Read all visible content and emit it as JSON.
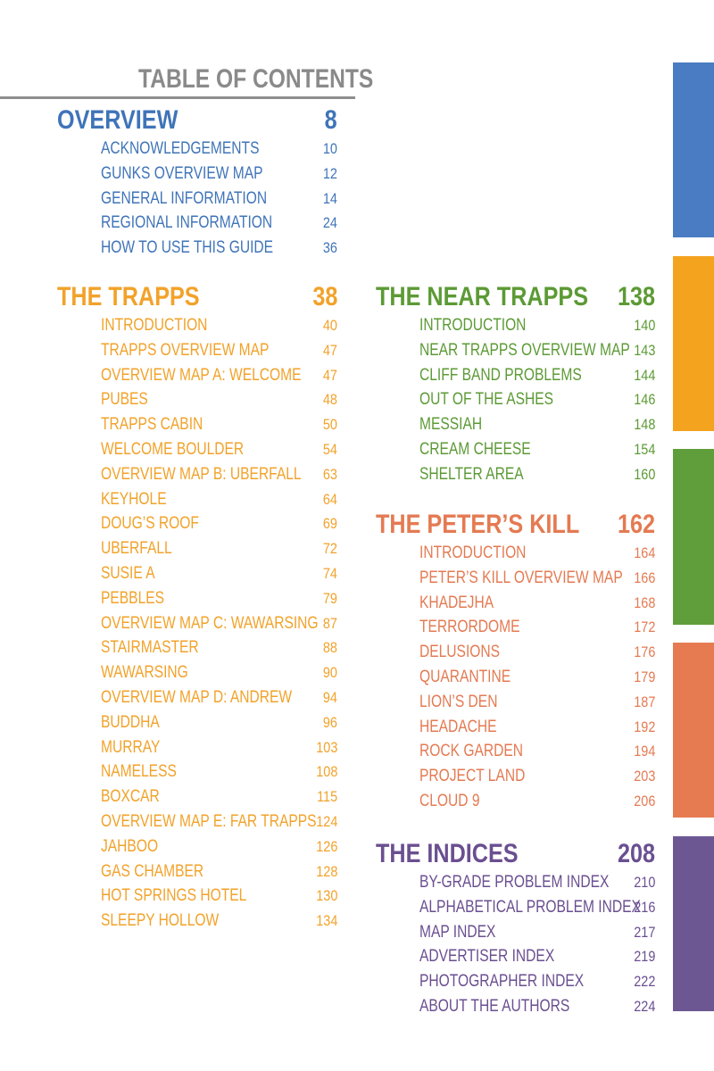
{
  "header": {
    "title": "TABLE OF CONTENTS"
  },
  "sections": [
    {
      "title": "OVERVIEW",
      "page": "8",
      "color": "#3f74b8",
      "entries": [
        {
          "label": "ACKNOWLEDGEMENTS",
          "page": "10"
        },
        {
          "label": "GUNKS OVERVIEW MAP",
          "page": "12"
        },
        {
          "label": "GENERAL INFORMATION",
          "page": "14"
        },
        {
          "label": "REGIONAL INFORMATION",
          "page": "24"
        },
        {
          "label": "HOW TO USE THIS GUIDE",
          "page": "36"
        }
      ]
    },
    {
      "title": "THE TRAPPS",
      "page": "38",
      "color": "#f2a22a",
      "entries": [
        {
          "label": "INTRODUCTION",
          "page": "40"
        },
        {
          "label": "TRAPPS OVERVIEW MAP",
          "page": "47"
        },
        {
          "label": "OVERVIEW MAP A: WELCOME",
          "page": "47"
        },
        {
          "label": "PUBES",
          "page": "48"
        },
        {
          "label": "TRAPPS CABIN",
          "page": "50"
        },
        {
          "label": "WELCOME BOULDER",
          "page": "54"
        },
        {
          "label": "OVERVIEW MAP B: UBERFALL",
          "page": "63"
        },
        {
          "label": "KEYHOLE",
          "page": "64"
        },
        {
          "label": "DOUG’S ROOF",
          "page": "69"
        },
        {
          "label": "UBERFALL",
          "page": "72"
        },
        {
          "label": "SUSIE A",
          "page": "74"
        },
        {
          "label": "PEBBLES",
          "page": "79"
        },
        {
          "label": "OVERVIEW MAP C: WAWARSING",
          "page": "87"
        },
        {
          "label": "STAIRMASTER",
          "page": "88"
        },
        {
          "label": "WAWARSING",
          "page": "90"
        },
        {
          "label": "OVERVIEW MAP D: ANDREW",
          "page": "94"
        },
        {
          "label": "BUDDHA",
          "page": "96"
        },
        {
          "label": "MURRAY",
          "page": "103"
        },
        {
          "label": "NAMELESS",
          "page": "108"
        },
        {
          "label": "BOXCAR",
          "page": "115"
        },
        {
          "label": "OVERVIEW MAP E: FAR TRAPPS",
          "page": "124"
        },
        {
          "label": "JAHBOO",
          "page": "126"
        },
        {
          "label": "GAS CHAMBER",
          "page": "128"
        },
        {
          "label": "HOT SPRINGS HOTEL",
          "page": "130"
        },
        {
          "label": "SLEEPY HOLLOW",
          "page": "134"
        }
      ]
    },
    {
      "title": "THE NEAR TRAPPS",
      "page": "138",
      "color": "#5c9a35",
      "entries": [
        {
          "label": "INTRODUCTION",
          "page": "140"
        },
        {
          "label": "NEAR TRAPPS OVERVIEW MAP",
          "page": "143"
        },
        {
          "label": "CLIFF BAND PROBLEMS",
          "page": "144"
        },
        {
          "label": "OUT OF THE ASHES",
          "page": "146"
        },
        {
          "label": "MESSIAH",
          "page": "148"
        },
        {
          "label": "CREAM CHEESE",
          "page": "154"
        },
        {
          "label": "SHELTER AREA",
          "page": "160"
        }
      ]
    },
    {
      "title": "THE PETER’S KILL",
      "page": "162",
      "color": "#e47a52",
      "entries": [
        {
          "label": "INTRODUCTION",
          "page": "164"
        },
        {
          "label": "PETER’S KILL OVERVIEW MAP",
          "page": "166"
        },
        {
          "label": "KHADEJHA",
          "page": "168"
        },
        {
          "label": "TERRORDOME",
          "page": "172"
        },
        {
          "label": "DELUSIONS",
          "page": "176"
        },
        {
          "label": "QUARANTINE",
          "page": "179"
        },
        {
          "label": "LION’S DEN",
          "page": "187"
        },
        {
          "label": "HEADACHE",
          "page": "192"
        },
        {
          "label": "ROCK GARDEN",
          "page": "194"
        },
        {
          "label": "PROJECT LAND",
          "page": "203"
        },
        {
          "label": "CLOUD 9",
          "page": "206"
        }
      ]
    },
    {
      "title": "THE INDICES",
      "page": "208",
      "color": "#6a4f90",
      "entries": [
        {
          "label": "BY-GRADE PROBLEM INDEX",
          "page": "210"
        },
        {
          "label": "ALPHABETICAL PROBLEM INDEX",
          "page": "216"
        },
        {
          "label": "MAP INDEX",
          "page": "217"
        },
        {
          "label": "ADVERTISER INDEX",
          "page": "219"
        },
        {
          "label": "PHOTOGRAPHER INDEX",
          "page": "222"
        },
        {
          "label": "ABOUT THE AUTHORS",
          "page": "224"
        }
      ]
    }
  ],
  "side_tabs": [
    {
      "color": "#4a7cc3"
    },
    {
      "color": "#f4a31f"
    },
    {
      "color": "#5f9e3b"
    },
    {
      "color": "#e67b51"
    },
    {
      "color": "#6d5792"
    }
  ]
}
